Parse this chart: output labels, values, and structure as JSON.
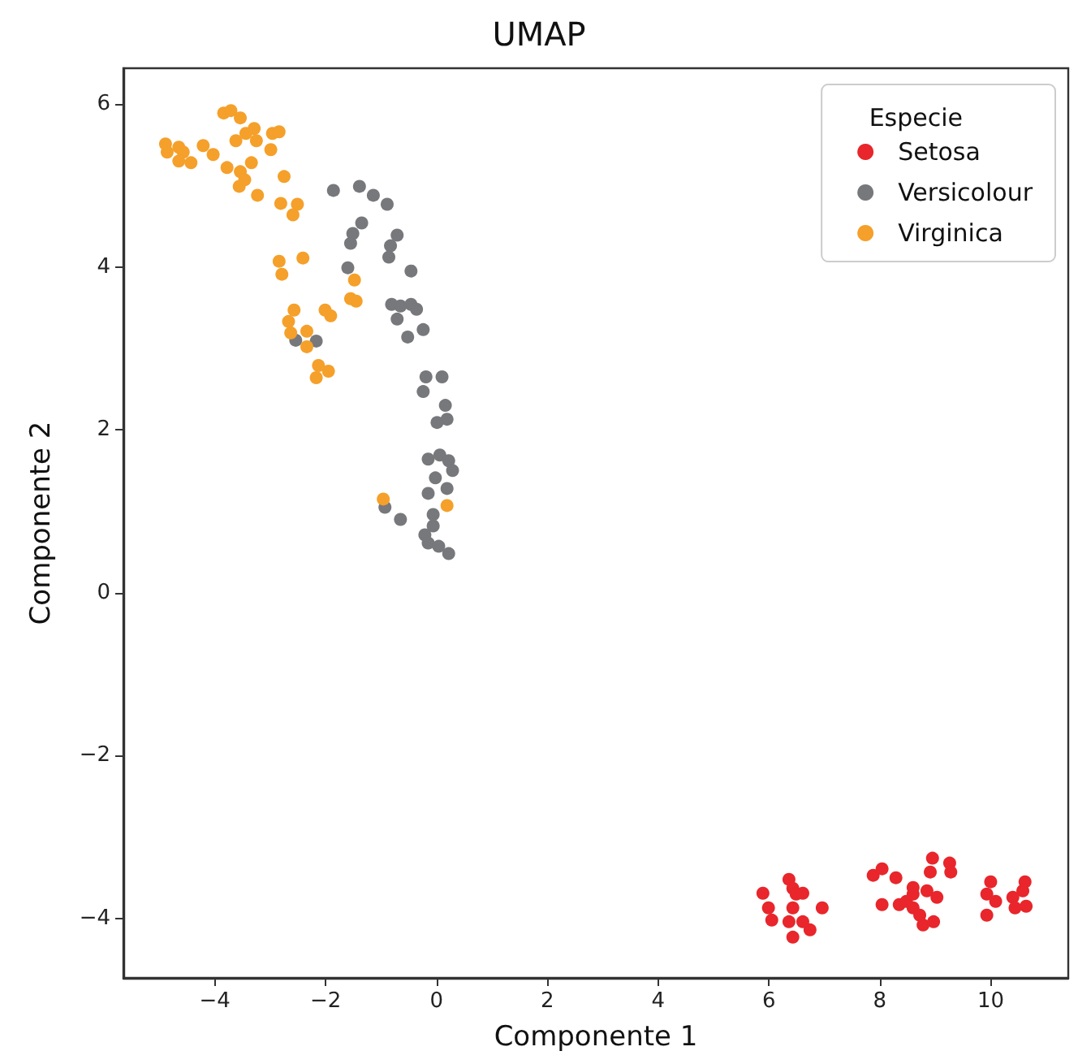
{
  "chart_data": {
    "type": "scatter",
    "title": "UMAP",
    "xlabel": "Componente 1",
    "ylabel": "Componente 2",
    "legend_title": "Especie",
    "legend": "top right",
    "grid": false,
    "marker": "circle",
    "xlim": [
      -5.65,
      11.4
    ],
    "ylim": [
      -4.73,
      6.44
    ],
    "xticks": [
      -4,
      -2,
      0,
      2,
      4,
      6,
      8,
      10
    ],
    "yticks": [
      -4,
      -2,
      0,
      2,
      4,
      6
    ],
    "series": [
      {
        "name": "Setosa",
        "color": "#e8262b",
        "x": [
          5.89,
          5.99,
          6.05,
          6.36,
          6.43,
          6.49,
          6.61,
          6.43,
          6.36,
          6.43,
          6.74,
          6.61,
          6.96,
          7.88,
          8.04,
          8.29,
          8.04,
          8.35,
          8.6,
          8.6,
          8.78,
          8.97,
          8.91,
          8.95,
          8.85,
          9.03,
          9.26,
          9.28,
          9.93,
          10.0,
          9.93,
          10.09,
          10.4,
          10.44,
          10.58,
          10.62,
          10.64,
          8.6,
          8.72,
          8.48
        ],
        "values": [
          -3.69,
          -3.87,
          -4.02,
          -3.52,
          -3.63,
          -3.7,
          -3.69,
          -3.87,
          -4.04,
          -4.23,
          -4.14,
          -4.04,
          -3.87,
          -3.47,
          -3.39,
          -3.5,
          -3.83,
          -3.83,
          -3.62,
          -3.87,
          -4.08,
          -4.04,
          -3.43,
          -3.26,
          -3.66,
          -3.74,
          -3.32,
          -3.43,
          -3.7,
          -3.55,
          -3.96,
          -3.79,
          -3.74,
          -3.87,
          -3.66,
          -3.55,
          -3.85,
          -3.7,
          -3.96,
          -3.79
        ]
      },
      {
        "name": "Versicolour",
        "color": "#77787b",
        "x": [
          -1.86,
          -1.39,
          -1.14,
          -0.89,
          -1.35,
          -1.51,
          -1.55,
          -0.71,
          -0.83,
          -0.86,
          -1.6,
          -0.46,
          -0.81,
          -0.65,
          -0.46,
          -0.36,
          -0.71,
          -0.52,
          -0.24,
          -2.54,
          -2.17,
          -0.19,
          0.1,
          -0.24,
          0.16,
          0.19,
          0.01,
          -0.15,
          0.06,
          0.22,
          0.29,
          -0.02,
          0.19,
          -0.15,
          -0.93,
          -0.65,
          -0.06,
          -0.06,
          -0.21,
          -0.15,
          0.04,
          0.16,
          0.22
        ],
        "values": [
          4.94,
          4.99,
          4.88,
          4.77,
          4.54,
          4.41,
          4.29,
          4.39,
          4.26,
          4.12,
          3.99,
          3.95,
          3.54,
          3.52,
          3.54,
          3.48,
          3.36,
          3.14,
          3.23,
          3.1,
          3.09,
          2.65,
          2.65,
          2.47,
          2.3,
          2.13,
          2.09,
          1.64,
          1.69,
          1.62,
          1.5,
          1.41,
          1.28,
          1.22,
          1.05,
          0.9,
          0.96,
          0.82,
          0.71,
          0.61,
          0.57,
          null,
          0.48
        ]
      },
      {
        "name": "Virginica",
        "color": "#f5a02a",
        "x": [
          -4.89,
          -4.86,
          -4.65,
          -4.57,
          -4.65,
          -4.43,
          -4.21,
          -4.03,
          -3.84,
          -3.71,
          -3.54,
          -3.78,
          -3.56,
          -3.46,
          -3.54,
          -3.62,
          -3.44,
          -3.29,
          -3.25,
          -3.34,
          -3.23,
          -2.99,
          -2.96,
          -2.84,
          -2.75,
          -2.81,
          -2.51,
          -2.59,
          -2.84,
          -2.41,
          -2.79,
          -2.57,
          -2.67,
          -2.63,
          -2.34,
          -2.34,
          -2.13,
          -2.17,
          -1.95,
          -2.01,
          -1.91,
          -1.48,
          -1.55,
          -1.45,
          -0.96,
          0.19
        ],
        "values": [
          5.51,
          5.41,
          5.47,
          5.41,
          5.3,
          5.28,
          5.49,
          5.38,
          5.89,
          5.92,
          5.83,
          5.22,
          4.99,
          5.07,
          5.17,
          5.55,
          5.64,
          5.7,
          5.55,
          5.28,
          4.88,
          5.44,
          5.64,
          5.66,
          5.11,
          4.78,
          4.77,
          4.64,
          4.07,
          4.11,
          3.91,
          3.47,
          3.33,
          3.19,
          3.21,
          3.02,
          2.79,
          2.64,
          2.72,
          3.47,
          3.4,
          3.84,
          3.61,
          3.58,
          1.15,
          1.07
        ]
      }
    ]
  }
}
